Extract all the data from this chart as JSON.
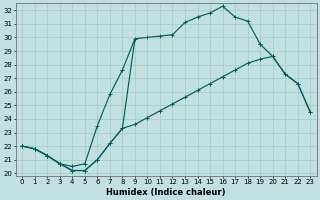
{
  "xlabel": "Humidex (Indice chaleur)",
  "ylabel": "",
  "bg_color": "#c2e0e0",
  "grid_color": "#a8cccc",
  "line_color": "#006060",
  "xlim": [
    -0.5,
    23.5
  ],
  "ylim": [
    19.8,
    32.5
  ],
  "xticks": [
    0,
    1,
    2,
    3,
    4,
    5,
    6,
    7,
    8,
    9,
    10,
    11,
    12,
    13,
    14,
    15,
    16,
    17,
    18,
    19,
    20,
    21,
    22,
    23
  ],
  "yticks": [
    20,
    21,
    22,
    23,
    24,
    25,
    26,
    27,
    28,
    29,
    30,
    31,
    32
  ],
  "curve1_x": [
    0,
    1,
    2,
    3,
    4,
    5,
    6,
    7,
    8,
    9,
    10,
    11,
    12,
    13,
    14,
    15,
    16,
    17,
    18,
    19
  ],
  "curve1_y": [
    22.0,
    21.8,
    21.3,
    20.7,
    20.2,
    20.2,
    21.0,
    22.2,
    23.3,
    29.9,
    30.0,
    30.1,
    30.2,
    31.1,
    31.5,
    31.8,
    32.3,
    31.5,
    31.2,
    29.5
  ],
  "curve2_x": [
    0,
    1,
    2,
    3,
    4,
    5,
    6,
    7,
    8
  ],
  "curve2_y": [
    22.0,
    21.8,
    21.3,
    20.7,
    20.5,
    20.7,
    23.5,
    25.8,
    27.6
  ],
  "curve3_x": [
    0,
    1,
    2,
    3,
    4,
    5,
    6,
    7,
    8,
    9,
    10,
    11,
    12,
    13,
    14,
    15,
    16,
    17,
    18,
    19,
    20,
    21,
    22,
    23
  ],
  "curve3_y": [
    22.0,
    21.8,
    21.3,
    20.7,
    20.2,
    20.2,
    21.0,
    22.2,
    23.3,
    23.6,
    24.1,
    24.6,
    25.1,
    25.6,
    26.1,
    26.6,
    27.1,
    27.6,
    28.1,
    28.4,
    28.6,
    27.3,
    26.6,
    24.5
  ],
  "close_x": [
    19,
    20,
    21,
    22,
    23
  ],
  "close_y": [
    29.5,
    28.6,
    27.3,
    26.6,
    24.5
  ]
}
